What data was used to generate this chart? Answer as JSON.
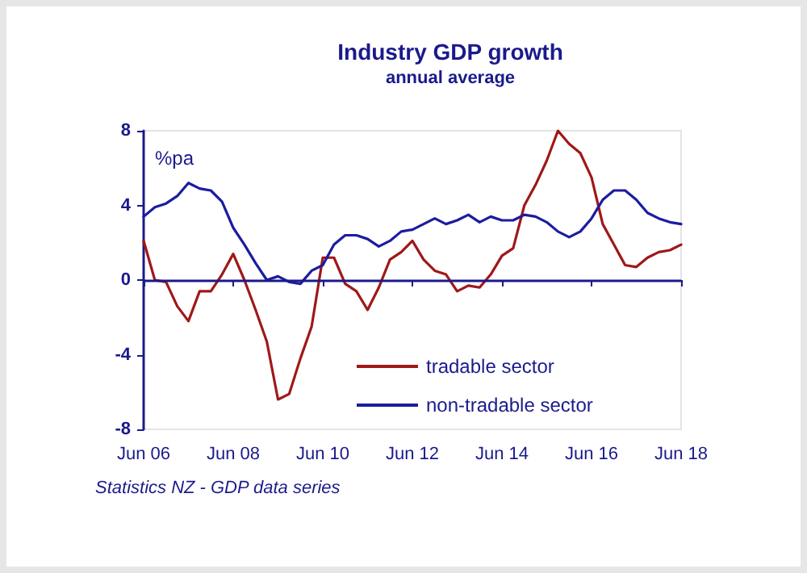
{
  "chart_data": {
    "type": "line",
    "title": "Industry GDP growth",
    "subtitle": "annual average",
    "ylabel": "%pa",
    "annotations": [
      "Statistics NZ - GDP data series"
    ],
    "categories": [
      "Jun 06",
      null,
      null,
      null,
      null,
      null,
      null,
      null,
      "Jun 08",
      null,
      null,
      null,
      null,
      null,
      null,
      null,
      "Jun 10",
      null,
      null,
      null,
      null,
      null,
      null,
      null,
      "Jun 12",
      null,
      null,
      null,
      null,
      null,
      null,
      null,
      "Jun 14",
      null,
      null,
      null,
      null,
      null,
      null,
      null,
      "Jun 16",
      null,
      null,
      null,
      null,
      null,
      null,
      null,
      "Jun 18"
    ],
    "series": [
      {
        "name": "tradable sector",
        "color": "#a01818",
        "values": [
          2.1,
          0,
          -0.1,
          -1.4,
          -2.2,
          -0.6,
          -0.6,
          0.3,
          1.4,
          0,
          -1.6,
          -3.3,
          -6.4,
          -6.1,
          -4.2,
          -2.5,
          1.2,
          1.2,
          -0.2,
          -0.6,
          -1.6,
          -0.4,
          1.1,
          1.5,
          2.1,
          1.1,
          0.5,
          0.3,
          -0.6,
          -0.3,
          -0.4,
          0.3,
          1.3,
          1.7,
          4.0,
          5.1,
          6.4,
          8.0,
          7.3,
          6.8,
          5.5,
          3.0,
          1.9,
          0.8,
          0.7,
          1.2,
          1.5,
          1.6,
          1.9
        ]
      },
      {
        "name": "non-tradable sector",
        "color": "#1c1ca0",
        "values": [
          3.4,
          3.9,
          4.1,
          4.5,
          5.2,
          4.9,
          4.8,
          4.2,
          2.8,
          1.9,
          0.9,
          0,
          0.2,
          -0.1,
          -0.2,
          0.5,
          0.8,
          1.9,
          2.4,
          2.4,
          2.2,
          1.8,
          2.1,
          2.6,
          2.7,
          3.0,
          3.3,
          3.0,
          3.2,
          3.5,
          3.1,
          3.4,
          3.2,
          3.2,
          3.5,
          3.4,
          3.1,
          2.6,
          2.3,
          2.6,
          3.3,
          4.3,
          4.8,
          4.8,
          4.3,
          3.6,
          3.3,
          3.1,
          3.0
        ]
      }
    ],
    "ylim": [
      -8,
      8
    ],
    "yticks": [
      -8,
      -4,
      0,
      4,
      8
    ],
    "ref_lines": [
      {
        "axis": "y",
        "value": 0,
        "color": "#1a1a8c"
      }
    ],
    "grid": false,
    "legend": "bottom",
    "marker": "none",
    "line_style": "solid"
  }
}
